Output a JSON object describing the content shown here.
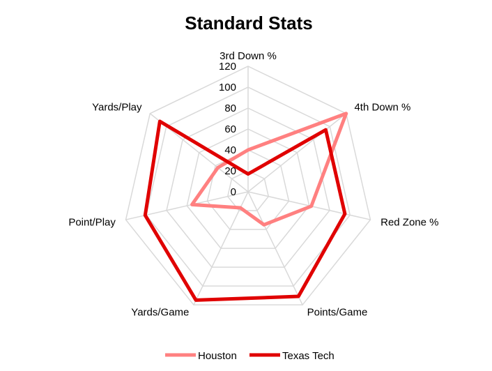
{
  "chart_data": {
    "type": "radar",
    "title": "Standard Stats",
    "categories": [
      "3rd Down %",
      "4th Down %",
      "Red Zone %",
      "Points/Game",
      "Yards/Game",
      "Point/Play",
      "Yards/Play"
    ],
    "rlim": [
      0,
      120
    ],
    "ticks": [
      "0",
      "20",
      "40",
      "60",
      "80",
      "100",
      "120"
    ],
    "grid": true,
    "legend": "bottom",
    "series": [
      {
        "name": "Houston",
        "color": "#ff8080",
        "values": [
          40,
          120,
          62,
          35,
          17,
          55,
          37
        ]
      },
      {
        "name": "Texas Tech",
        "color": "#e00000",
        "values": [
          17,
          95,
          95,
          111,
          115,
          101,
          108
        ]
      }
    ]
  }
}
